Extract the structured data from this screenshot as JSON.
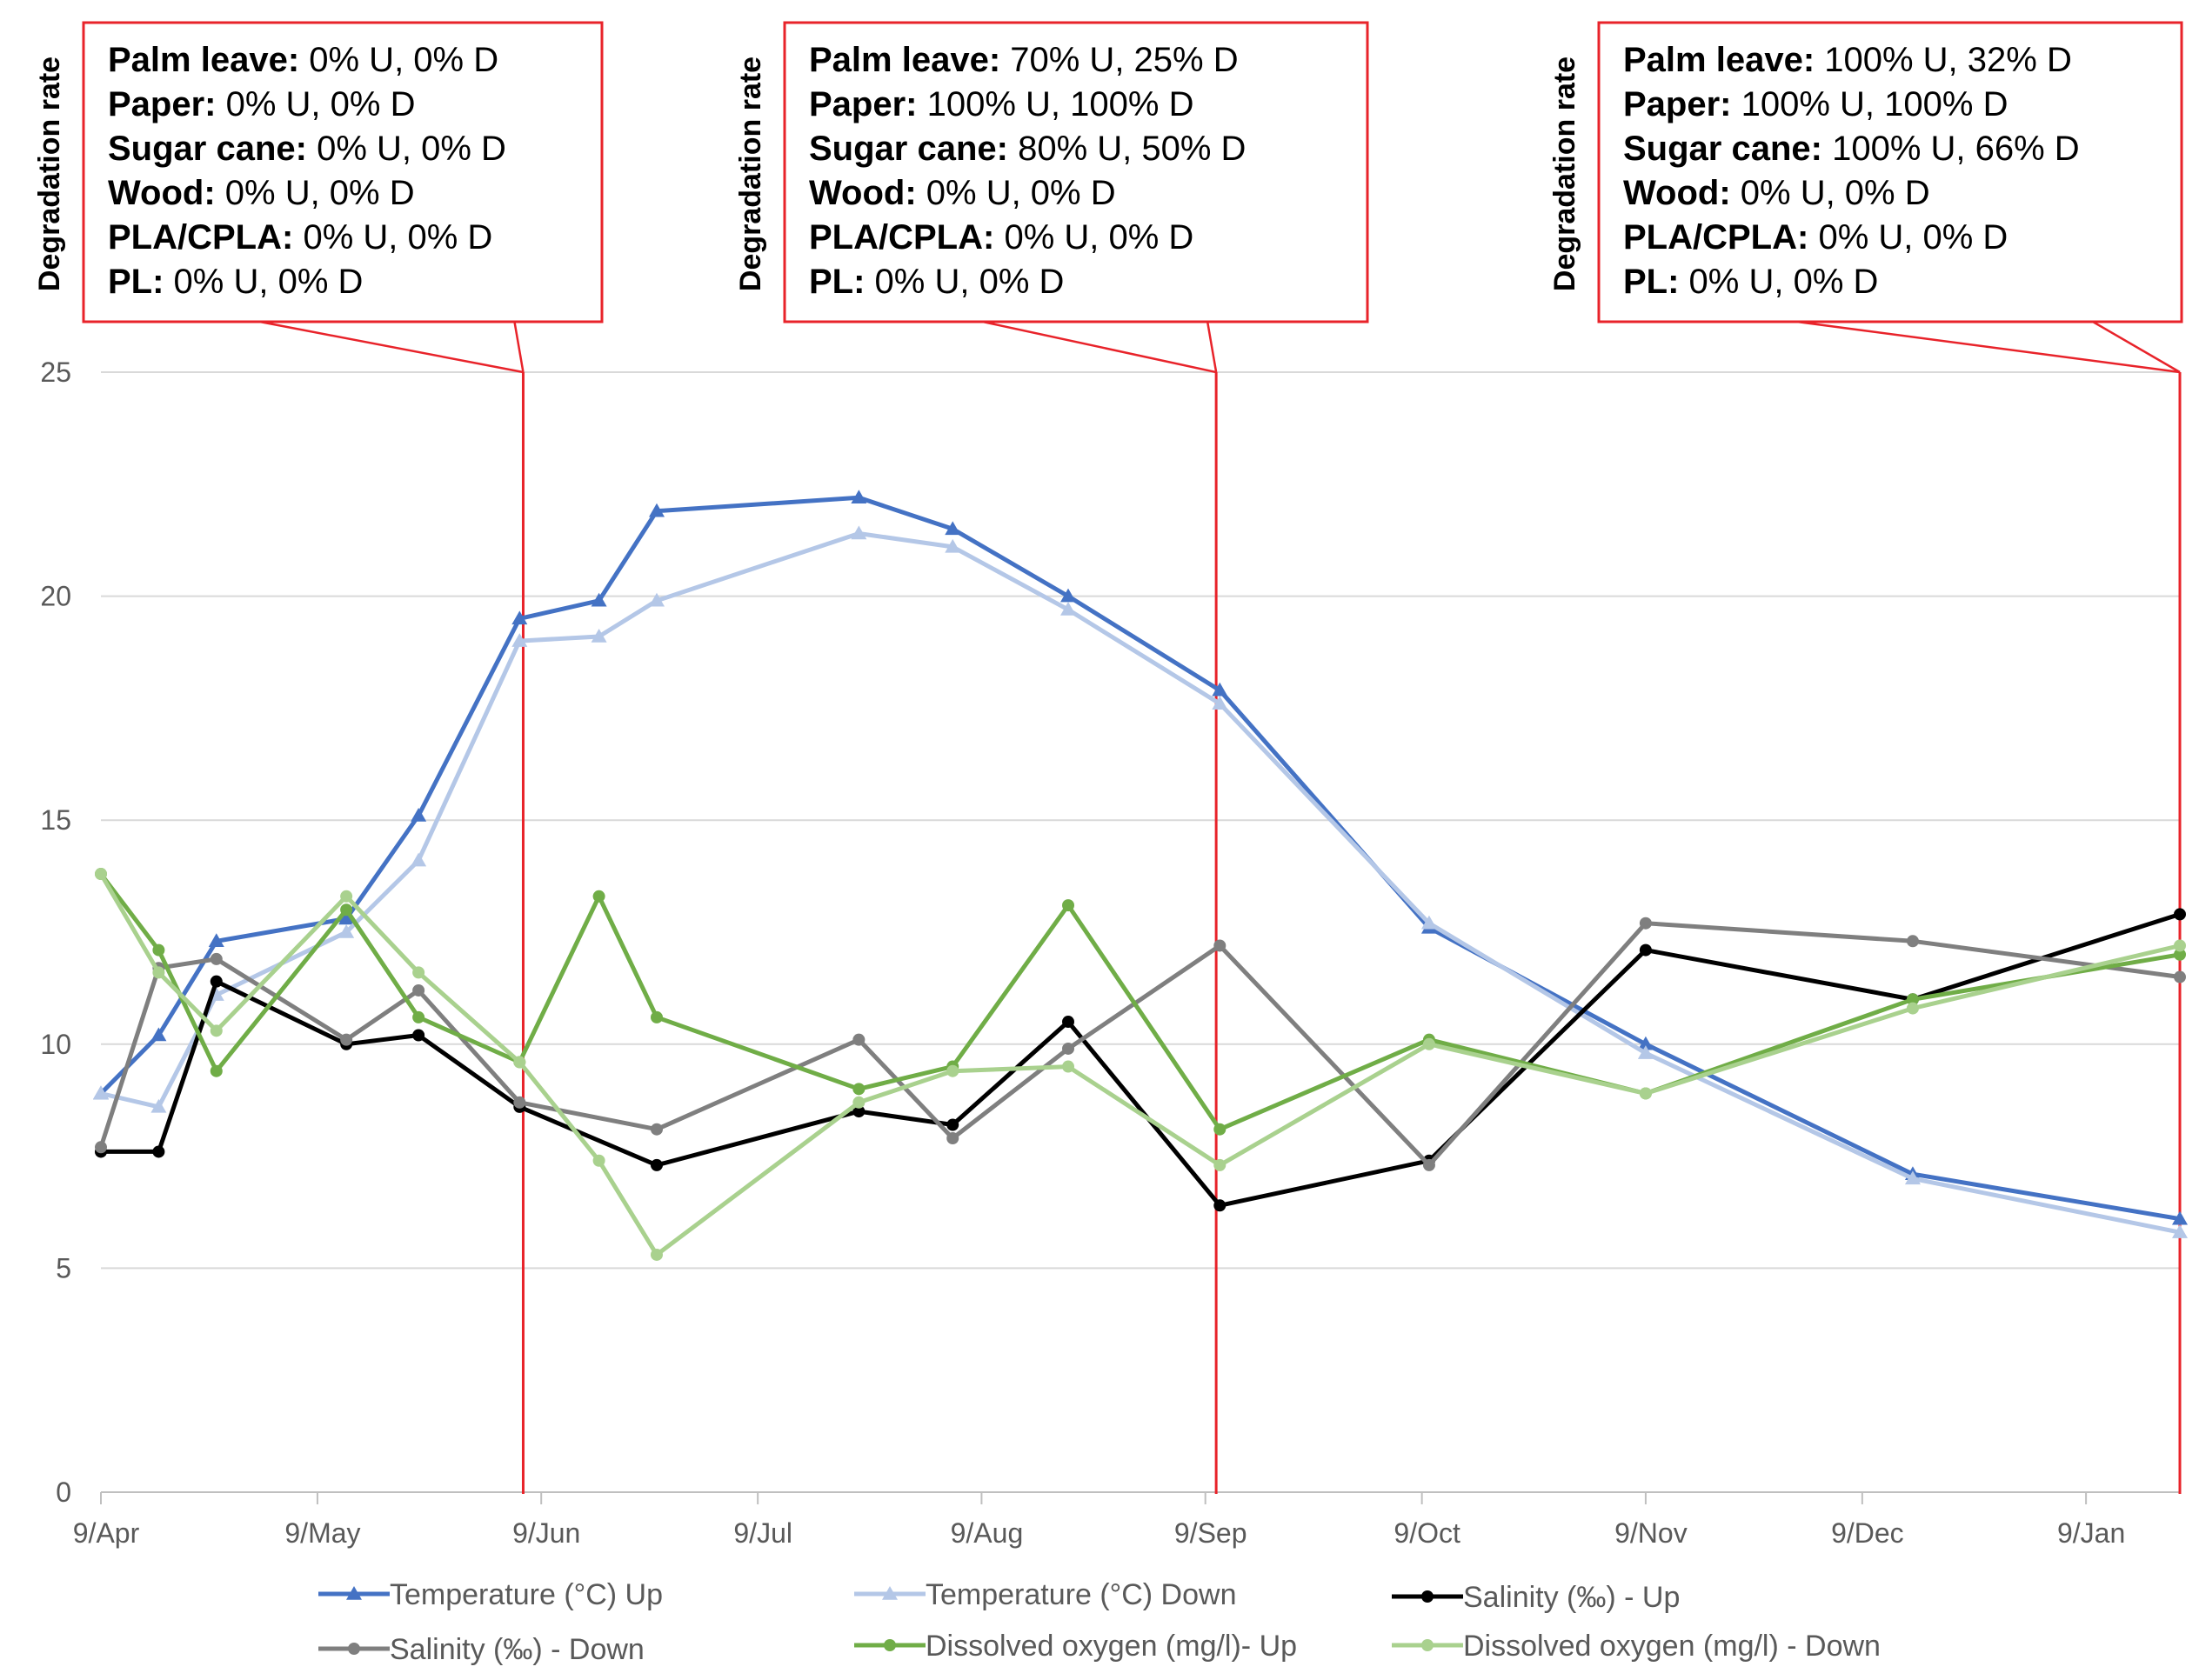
{
  "chart_data": {
    "type": "line",
    "title": "",
    "xlabel": "",
    "ylabel": "",
    "ylim": [
      0,
      25
    ],
    "yticks": [
      0,
      5,
      10,
      15,
      20,
      25
    ],
    "grid": true,
    "xlim_days": [
      0,
      288
    ],
    "xticks": [
      {
        "label": "9/Apr",
        "day": 0
      },
      {
        "label": "9/May",
        "day": 30
      },
      {
        "label": "9/Jun",
        "day": 61
      },
      {
        "label": "9/Jul",
        "day": 91
      },
      {
        "label": "9/Aug",
        "day": 122
      },
      {
        "label": "9/Sep",
        "day": 153
      },
      {
        "label": "9/Oct",
        "day": 183
      },
      {
        "label": "9/Nov",
        "day": 214
      },
      {
        "label": "9/Dec",
        "day": 244
      },
      {
        "label": "9/Jan",
        "day": 275
      }
    ],
    "legend_position": "bottom",
    "series": [
      {
        "name": "Temperature (°C) Up",
        "color": "#4472C4",
        "marker": "triangle",
        "days": [
          0,
          8,
          16,
          34,
          44,
          58,
          69,
          77,
          105,
          118,
          134,
          155,
          184,
          214,
          251,
          288
        ],
        "values": [
          8.9,
          10.2,
          12.3,
          12.8,
          15.1,
          19.5,
          19.9,
          21.9,
          22.2,
          21.5,
          20.0,
          17.9,
          12.6,
          10.0,
          7.1,
          6.1
        ]
      },
      {
        "name": "Temperature (°C) Down",
        "color": "#B4C7E7",
        "marker": "triangle",
        "days": [
          0,
          8,
          16,
          34,
          44,
          58,
          69,
          77,
          105,
          118,
          134,
          155,
          184,
          214,
          251,
          288
        ],
        "values": [
          8.9,
          8.6,
          11.1,
          12.5,
          14.1,
          19.0,
          19.1,
          19.9,
          21.4,
          21.1,
          19.7,
          17.6,
          12.7,
          9.8,
          7.0,
          5.8
        ]
      },
      {
        "name": "Salinity (‰) - Up",
        "color": "#000000",
        "marker": "circle",
        "days": [
          0,
          8,
          16,
          34,
          44,
          58,
          77,
          105,
          118,
          134,
          155,
          184,
          214,
          251,
          288
        ],
        "values": [
          7.6,
          7.6,
          11.4,
          10.0,
          10.2,
          8.6,
          7.3,
          8.5,
          8.2,
          10.5,
          6.4,
          7.4,
          12.1,
          11.0,
          12.9
        ]
      },
      {
        "name": "Salinity (‰) - Down",
        "color": "#7F7F7F",
        "marker": "circle",
        "days": [
          0,
          8,
          16,
          34,
          44,
          58,
          77,
          105,
          118,
          134,
          155,
          184,
          214,
          251,
          288
        ],
        "values": [
          7.7,
          11.7,
          11.9,
          10.1,
          11.2,
          8.7,
          8.1,
          10.1,
          7.9,
          9.9,
          12.2,
          7.3,
          12.7,
          12.3,
          11.5
        ]
      },
      {
        "name": "Dissolved oxygen (mg/l)- Up",
        "color": "#70AD47",
        "marker": "circle",
        "days": [
          0,
          8,
          16,
          34,
          44,
          58,
          69,
          77,
          105,
          118,
          134,
          155,
          184,
          214,
          251,
          288
        ],
        "values": [
          13.8,
          12.1,
          9.4,
          13.0,
          10.6,
          9.6,
          13.3,
          10.6,
          9.0,
          9.5,
          13.1,
          8.1,
          10.1,
          8.9,
          11.0,
          12.0
        ]
      },
      {
        "name": "Dissolved oxygen (mg/l) - Down",
        "color": "#A9D18E",
        "marker": "circle",
        "days": [
          0,
          8,
          16,
          34,
          44,
          58,
          69,
          77,
          105,
          118,
          134,
          155,
          184,
          214,
          251,
          288
        ],
        "values": [
          13.8,
          11.6,
          10.3,
          13.3,
          11.6,
          9.6,
          7.4,
          5.3,
          8.7,
          9.4,
          9.5,
          7.3,
          10.0,
          8.9,
          10.8,
          12.2
        ]
      }
    ],
    "markers": [
      {
        "day": 58.5,
        "label": "Degradation rate",
        "lines": [
          {
            "name": "Palm leave:",
            "value": "0% U, 0% D"
          },
          {
            "name": "Paper:",
            "value": "0% U, 0% D"
          },
          {
            "name": "Sugar cane:",
            "value": "0% U, 0% D"
          },
          {
            "name": "Wood:",
            "value": " 0% U, 0% D"
          },
          {
            "name": "PLA/CPLA:",
            "value": " 0% U, 0% D"
          },
          {
            "name": "PL:",
            "value": " 0% U, 0% D"
          }
        ]
      },
      {
        "day": 154.5,
        "label": "Degradation rate",
        "lines": [
          {
            "name": "Palm leave:",
            "value": "70% U, 25% D"
          },
          {
            "name": "Paper:",
            "value": "100% U, 100% D"
          },
          {
            "name": "Sugar cane:",
            "value": "80% U, 50% D"
          },
          {
            "name": "Wood:",
            "value": " 0% U, 0% D"
          },
          {
            "name": "PLA/CPLA:",
            "value": " 0% U, 0% D"
          },
          {
            "name": "PL:",
            "value": " 0% U, 0% D"
          }
        ]
      },
      {
        "day": 288,
        "label": "Degradation rate",
        "lines": [
          {
            "name": "Palm leave:",
            "value": "100% U, 32% D"
          },
          {
            "name": "Paper:",
            "value": "100% U, 100% D"
          },
          {
            "name": "Sugar cane:",
            "value": "100% U, 66% D"
          },
          {
            "name": "Wood:",
            "value": " 0% U, 0% D"
          },
          {
            "name": "PLA/CPLA:",
            "value": " 0% U, 0% D"
          },
          {
            "name": "PL:",
            "value": " 0% U, 0% D"
          }
        ]
      }
    ]
  }
}
